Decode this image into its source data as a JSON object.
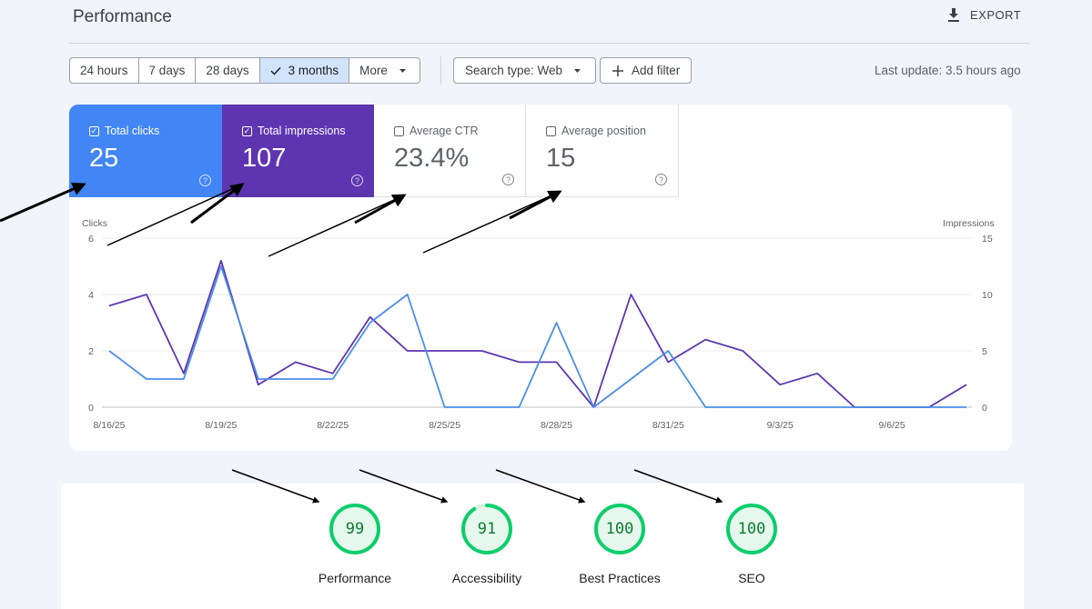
{
  "header": {
    "title": "Performance",
    "export_label": "EXPORT"
  },
  "toolbar": {
    "ranges": [
      {
        "label": "24 hours",
        "active": false
      },
      {
        "label": "7 days",
        "active": false
      },
      {
        "label": "28 days",
        "active": false
      },
      {
        "label": "3 months",
        "active": true
      },
      {
        "label": "More",
        "active": false
      }
    ],
    "search_type_label": "Search type: Web",
    "add_filter_label": "Add filter",
    "last_update": "Last update: 3.5 hours ago"
  },
  "metrics": [
    {
      "label": "Total clicks",
      "value": "25",
      "checked": true
    },
    {
      "label": "Total impressions",
      "value": "107",
      "checked": true
    },
    {
      "label": "Average CTR",
      "value": "23.4%",
      "checked": false
    },
    {
      "label": "Average position",
      "value": "15",
      "checked": false
    }
  ],
  "chart_data": {
    "type": "line",
    "left_axis_title": "Clicks",
    "right_axis_title": "Impressions",
    "left_ylim": [
      0,
      6
    ],
    "right_ylim": [
      0,
      15
    ],
    "left_ticks": [
      "6",
      "4",
      "2",
      "0"
    ],
    "right_ticks": [
      "15",
      "10",
      "5",
      "0"
    ],
    "x_tick_labels": [
      "8/16/25",
      "8/19/25",
      "8/22/25",
      "8/25/25",
      "8/28/25",
      "8/31/25",
      "9/3/25",
      "9/6/25"
    ],
    "x": [
      "8/16/25",
      "8/17/25",
      "8/18/25",
      "8/19/25",
      "8/20/25",
      "8/21/25",
      "8/22/25",
      "8/23/25",
      "8/24/25",
      "8/25/25",
      "8/26/25",
      "8/27/25",
      "8/28/25",
      "8/29/25",
      "8/30/25",
      "8/31/25",
      "9/1/25",
      "9/2/25",
      "9/3/25",
      "9/4/25",
      "9/5/25",
      "9/6/25",
      "9/7/25",
      "9/8/25"
    ],
    "series": [
      {
        "axis": "left",
        "color": "#4a8fe7",
        "values": [
          2,
          1,
          1,
          5,
          1,
          1,
          1,
          3,
          4,
          0,
          0,
          0,
          3,
          0,
          1,
          2,
          0,
          0,
          0,
          0,
          0,
          0,
          0,
          0
        ]
      },
      {
        "axis": "right",
        "color": "#5e35b1",
        "values": [
          9,
          10,
          3,
          13,
          2,
          4,
          3,
          8,
          5,
          5,
          5,
          4,
          4,
          0,
          10,
          4,
          6,
          5,
          2,
          3,
          0,
          0,
          0,
          2
        ]
      }
    ]
  },
  "lighthouse": [
    {
      "label": "Performance",
      "score": "99",
      "value": 99
    },
    {
      "label": "Accessibility",
      "score": "91",
      "value": 91
    },
    {
      "label": "Best Practices",
      "score": "100",
      "value": 100
    },
    {
      "label": "SEO",
      "score": "100",
      "value": 100
    }
  ],
  "colors": {
    "clicks": "#4285f4",
    "impressions": "#5e35b1",
    "gauge_good": "#0cce6b",
    "gauge_text": "#0a7d2f"
  }
}
